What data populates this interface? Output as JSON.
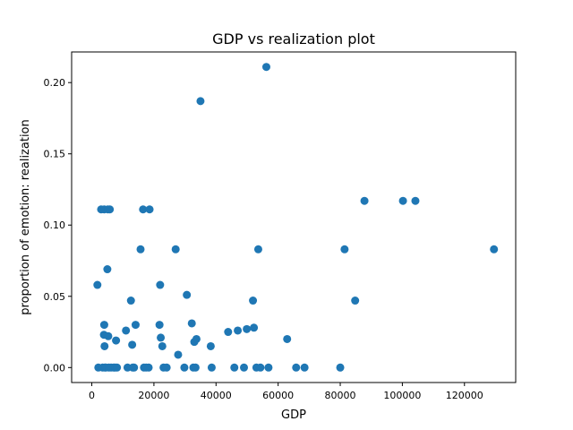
{
  "chart_data": {
    "type": "scatter",
    "title": "GDP vs realization plot",
    "xlabel": "GDP",
    "ylabel": "proportion of emotion: realization",
    "xlim": [
      -6500,
      136500
    ],
    "ylim": [
      -0.0105,
      0.2215
    ],
    "xticks": [
      0,
      20000,
      40000,
      60000,
      80000,
      100000,
      120000
    ],
    "xtick_labels": [
      "0",
      "20000",
      "40000",
      "60000",
      "80000",
      "100000",
      "120000"
    ],
    "yticks": [
      0.0,
      0.05,
      0.1,
      0.15,
      0.2
    ],
    "ytick_labels": [
      "0.00",
      "0.05",
      "0.10",
      "0.15",
      "0.20"
    ],
    "grid": false,
    "marker_color": "#1f77b4",
    "points": [
      [
        1800,
        0.058
      ],
      [
        2100,
        0.0
      ],
      [
        3000,
        0.111
      ],
      [
        3500,
        0.0
      ],
      [
        4000,
        0.03
      ],
      [
        4100,
        0.015
      ],
      [
        4000,
        0.111
      ],
      [
        3900,
        0.023
      ],
      [
        4200,
        0.0
      ],
      [
        4500,
        0.0
      ],
      [
        5000,
        0.069
      ],
      [
        5200,
        0.111
      ],
      [
        5300,
        0.022
      ],
      [
        5500,
        0.0
      ],
      [
        5800,
        0.111
      ],
      [
        6200,
        0.0
      ],
      [
        7000,
        0.0
      ],
      [
        7500,
        0.0
      ],
      [
        7800,
        0.019
      ],
      [
        8100,
        0.0
      ],
      [
        11000,
        0.026
      ],
      [
        11500,
        0.0
      ],
      [
        12600,
        0.047
      ],
      [
        13000,
        0.016
      ],
      [
        13200,
        0.0
      ],
      [
        13600,
        0.0
      ],
      [
        14100,
        0.03
      ],
      [
        15700,
        0.083
      ],
      [
        16500,
        0.111
      ],
      [
        16800,
        0.0
      ],
      [
        17500,
        0.0
      ],
      [
        18600,
        0.111
      ],
      [
        18300,
        0.0
      ],
      [
        21800,
        0.03
      ],
      [
        22000,
        0.058
      ],
      [
        22200,
        0.021
      ],
      [
        22700,
        0.015
      ],
      [
        23100,
        0.0
      ],
      [
        24100,
        0.0
      ],
      [
        27000,
        0.083
      ],
      [
        27800,
        0.009
      ],
      [
        29800,
        0.0
      ],
      [
        30600,
        0.051
      ],
      [
        32200,
        0.031
      ],
      [
        32700,
        0.0
      ],
      [
        33000,
        0.018
      ],
      [
        33400,
        0.0
      ],
      [
        33700,
        0.02
      ],
      [
        35000,
        0.187
      ],
      [
        38300,
        0.015
      ],
      [
        38600,
        0.0
      ],
      [
        43900,
        0.025
      ],
      [
        45900,
        0.0
      ],
      [
        47000,
        0.026
      ],
      [
        49000,
        0.0
      ],
      [
        49900,
        0.027
      ],
      [
        51900,
        0.047
      ],
      [
        52200,
        0.028
      ],
      [
        53000,
        0.0
      ],
      [
        53600,
        0.083
      ],
      [
        54300,
        0.0
      ],
      [
        56200,
        0.211
      ],
      [
        56900,
        0.0
      ],
      [
        62900,
        0.02
      ],
      [
        65800,
        0.0
      ],
      [
        68500,
        0.0
      ],
      [
        80000,
        0.0
      ],
      [
        81400,
        0.083
      ],
      [
        84800,
        0.047
      ],
      [
        87800,
        0.117
      ],
      [
        100200,
        0.117
      ],
      [
        104200,
        0.117
      ],
      [
        129500,
        0.083
      ]
    ]
  }
}
